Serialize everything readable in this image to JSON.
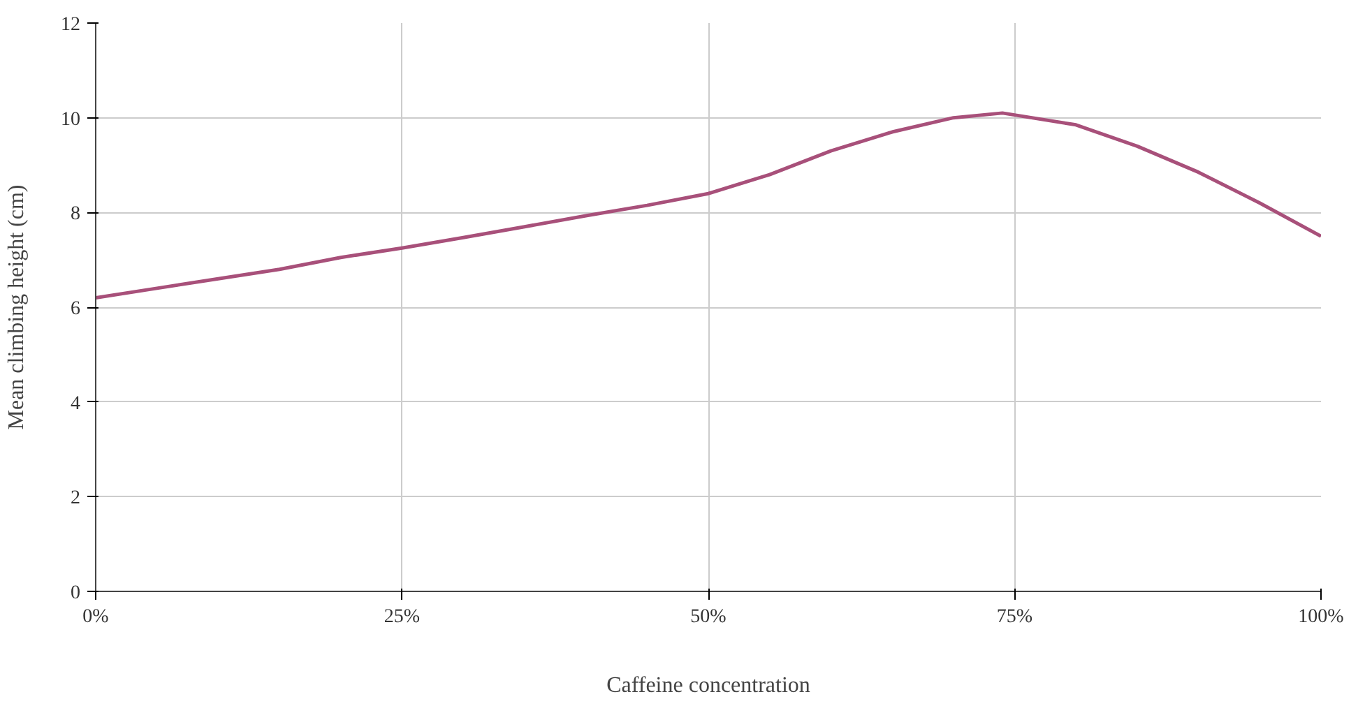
{
  "chart_data": {
    "type": "line",
    "xlabel": "Caffeine concentration",
    "ylabel": "Mean climbing height (cm)",
    "x": [
      0,
      5,
      10,
      15,
      20,
      25,
      30,
      35,
      40,
      45,
      50,
      55,
      60,
      65,
      70,
      74,
      80,
      85,
      90,
      95,
      100
    ],
    "series": [
      {
        "color": "#a8507a",
        "values": [
          6.2,
          6.4,
          6.6,
          6.8,
          7.05,
          7.25,
          7.47,
          7.7,
          7.93,
          8.15,
          8.4,
          8.8,
          9.3,
          9.7,
          10.0,
          10.1,
          9.85,
          9.4,
          8.85,
          8.2,
          7.5
        ]
      }
    ],
    "xlim": [
      0,
      100
    ],
    "xticks": [
      {
        "value": 0,
        "label": "0%"
      },
      {
        "value": 25,
        "label": "25%"
      },
      {
        "value": 50,
        "label": "50%"
      },
      {
        "value": 75,
        "label": "75%"
      },
      {
        "value": 100,
        "label": "100%"
      }
    ],
    "ylim": [
      0,
      12
    ],
    "yticks": [
      0,
      2,
      4,
      6,
      8,
      10,
      12
    ],
    "grid": true,
    "marker": "none",
    "line_style": "solid"
  }
}
